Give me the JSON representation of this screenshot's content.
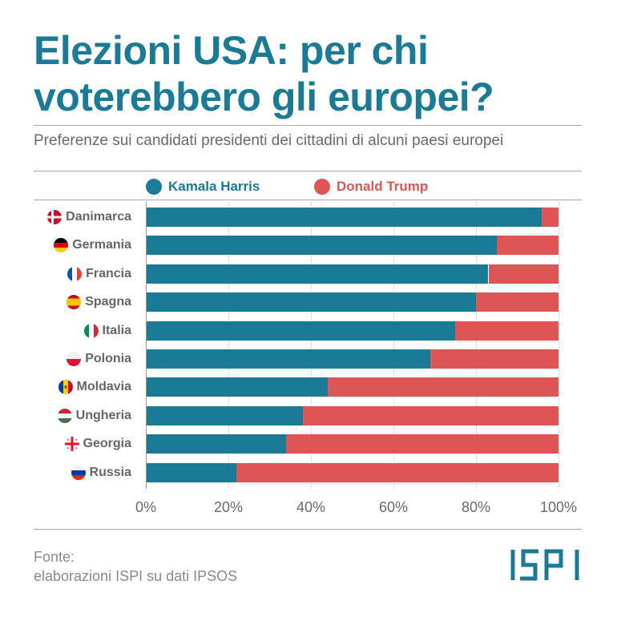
{
  "title": "Elezioni USA: per chi voterebbero gli europei?",
  "subtitle": "Preferenze sui candidati presidenti dei cittadini di alcuni paesi europei",
  "legend": {
    "harris": "Kamala Harris",
    "trump": "Donald Trump"
  },
  "colors": {
    "harris": "#1b7a95",
    "trump": "#dd5555",
    "title": "#1b7a95"
  },
  "chart_data": {
    "type": "bar",
    "orientation": "horizontal",
    "stacked": true,
    "categories": [
      "Danimarca",
      "Germania",
      "Francia",
      "Spagna",
      "Italia",
      "Polonia",
      "Moldavia",
      "Ungheria",
      "Georgia",
      "Russia"
    ],
    "series": [
      {
        "name": "Kamala Harris",
        "values": [
          96,
          85,
          83,
          80,
          75,
          69,
          44,
          38,
          34,
          22
        ]
      },
      {
        "name": "Donald Trump",
        "values": [
          4,
          15,
          17,
          20,
          25,
          31,
          56,
          62,
          66,
          78
        ]
      }
    ],
    "xlim": [
      0,
      100
    ],
    "xticks": [
      "0%",
      "20%",
      "40%",
      "60%",
      "80%",
      "100%"
    ],
    "xlabel": "",
    "ylabel": "",
    "grid": true,
    "legend_position": "top"
  },
  "source": {
    "label": "Fonte:",
    "text": "elaborazioni ISPI su dati IPSOS"
  },
  "logo_text": "ISPI"
}
